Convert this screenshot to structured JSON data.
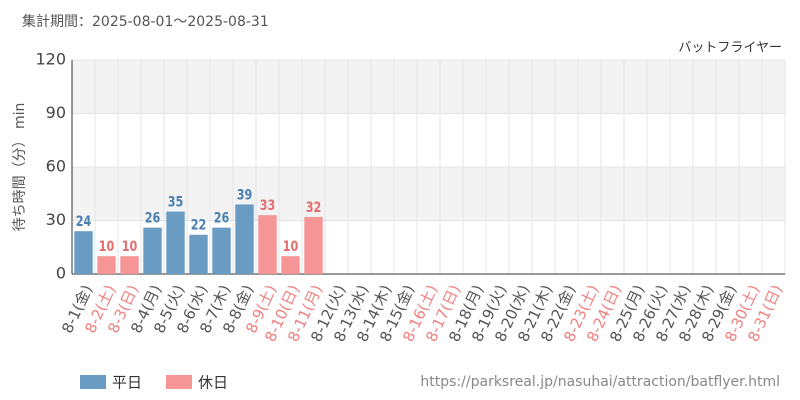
{
  "header": "集計期間：2025-08-01～2025-08-31",
  "source": "https://parksreal.jp/nasuhai/attraction/batflyer.html",
  "chart_data": {
    "type": "bar",
    "title": "バットフライヤー",
    "y_label": "待ち時間（分） min",
    "categories": [
      "8-1(金)",
      "8-2(土)",
      "8-3(日)",
      "8-4(月)",
      "8-5(火)",
      "8-6(水)",
      "8-7(木)",
      "8-8(金)",
      "8-9(土)",
      "8-10(日)",
      "8-11(月)",
      "8-12(火)",
      "8-13(水)",
      "8-14(木)",
      "8-15(金)",
      "8-16(土)",
      "8-17(日)",
      "8-18(月)",
      "8-19(火)",
      "8-20(水)",
      "8-21(木)",
      "8-22(金)",
      "8-23(土)",
      "8-24(日)",
      "8-25(月)",
      "8-26(火)",
      "8-27(水)",
      "8-28(木)",
      "8-29(金)",
      "8-30(土)",
      "8-31(日)"
    ],
    "category_colors": [
      "#555",
      "#f08080",
      "#f08080",
      "#555",
      "#555",
      "#555",
      "#555",
      "#555",
      "#f08080",
      "#f08080",
      "#f08080",
      "#555",
      "#555",
      "#555",
      "#555",
      "#f08080",
      "#f08080",
      "#555",
      "#555",
      "#555",
      "#555",
      "#555",
      "#f08080",
      "#f08080",
      "#555",
      "#555",
      "#555",
      "#555",
      "#555",
      "#f08080",
      "#f08080"
    ],
    "series": [
      {
        "name": "平日",
        "color": "#6a9bc3",
        "label_color": "#4a7fb0",
        "values": [
          24,
          null,
          null,
          26,
          35,
          22,
          26,
          39,
          null,
          null,
          null,
          null,
          null,
          null,
          null,
          null,
          null,
          null,
          null,
          null,
          null,
          null,
          null,
          null,
          null,
          null,
          null,
          null,
          null,
          null,
          null
        ]
      },
      {
        "name": "休日",
        "color": "#f59595",
        "label_color": "#e46d6d",
        "values": [
          null,
          10,
          10,
          null,
          null,
          null,
          null,
          null,
          33,
          10,
          32,
          null,
          null,
          null,
          null,
          null,
          null,
          null,
          null,
          null,
          null,
          null,
          null,
          null,
          null,
          null,
          null,
          null,
          null,
          null,
          null
        ]
      }
    ],
    "ylim": [
      0,
      120
    ],
    "yticks": [
      0,
      30,
      60,
      90,
      120
    ],
    "grid": true
  }
}
